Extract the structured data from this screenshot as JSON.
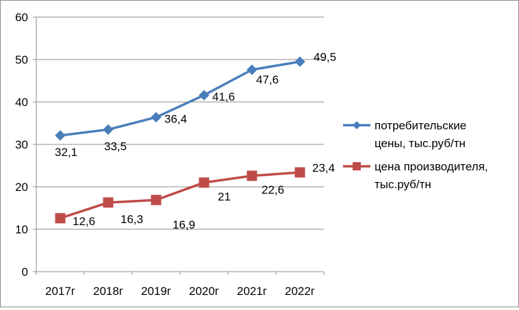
{
  "chart_data": {
    "type": "line",
    "title": "",
    "xlabel": "",
    "ylabel": "",
    "categories": [
      "2017г",
      "2018г",
      "2019г",
      "2020г",
      "2021г",
      "2022г"
    ],
    "ylim": [
      0,
      60
    ],
    "yticks": [
      0,
      10,
      20,
      30,
      40,
      50,
      60
    ],
    "ytick_labels": [
      "0",
      "10",
      "20",
      "30",
      "40",
      "50",
      "60"
    ],
    "grid": "horizontal",
    "legend_position": "right",
    "series": [
      {
        "name": "потребительские цены, тыс.руб/тн",
        "legend_lines": [
          "потребительские",
          "цены, тыс.руб/тн"
        ],
        "marker": "diamond",
        "color": "#4a7ebb",
        "values": [
          32.1,
          33.5,
          36.4,
          41.6,
          47.6,
          49.5
        ],
        "labels": [
          "32,1",
          "33,5",
          "36,4",
          "41,6",
          "47,6",
          "49,5"
        ]
      },
      {
        "name": "цена производителя, тыс.руб/тн",
        "legend_lines": [
          "цена производителя,",
          "тыс.руб/тн"
        ],
        "marker": "square",
        "color": "#be4b48",
        "values": [
          12.6,
          16.3,
          16.9,
          21,
          22.6,
          23.4
        ],
        "labels": [
          "12,6",
          "16,3",
          "16,9",
          "21",
          "22,6",
          "23,4"
        ]
      }
    ]
  }
}
